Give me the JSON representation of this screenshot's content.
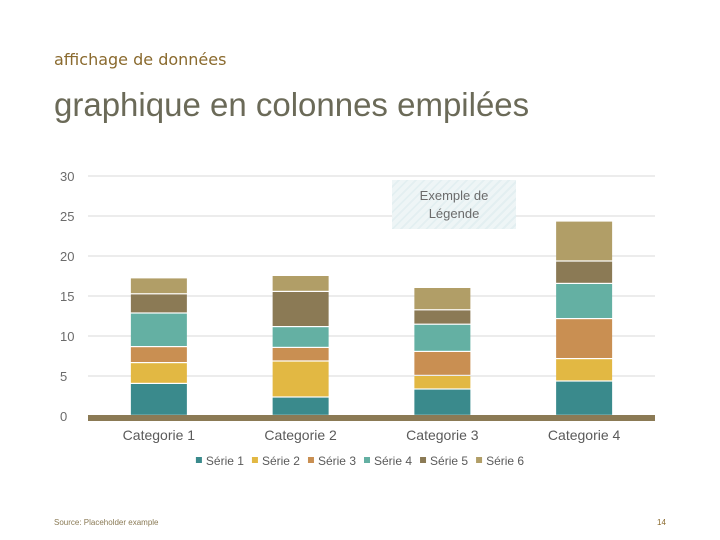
{
  "header": {
    "kicker": "affichage de données",
    "title": "graphique en colonnes empilées"
  },
  "legend_note": {
    "line1": "Exemple de",
    "line2": "Légende"
  },
  "footer": {
    "source": "Source: Placeholder example",
    "page_number": "14"
  },
  "colors": {
    "Série 1": "#3a8a8c",
    "Série 2": "#e2b843",
    "Série 3": "#c98f52",
    "Série 4": "#64b0a3",
    "Série 5": "#8b7a55",
    "Série 6": "#b19e67",
    "baseline": "#8b7a55",
    "grid": "#d9d9d9"
  },
  "chart_data": {
    "type": "bar",
    "stacked": true,
    "categories": [
      "Categorie 1",
      "Categorie 2",
      "Categorie 3",
      "Categorie 4"
    ],
    "series": [
      {
        "name": "Série 1",
        "values": [
          4.0,
          2.3,
          3.3,
          4.3
        ]
      },
      {
        "name": "Série 2",
        "values": [
          2.6,
          4.5,
          1.7,
          2.8
        ]
      },
      {
        "name": "Série 3",
        "values": [
          2.0,
          1.7,
          3.0,
          5.0
        ]
      },
      {
        "name": "Série 4",
        "values": [
          4.2,
          2.6,
          3.4,
          4.4
        ]
      },
      {
        "name": "Série 5",
        "values": [
          2.4,
          4.4,
          1.8,
          2.8
        ]
      },
      {
        "name": "Série 6",
        "values": [
          2.0,
          2.0,
          2.8,
          5.0
        ]
      }
    ],
    "ylim": [
      0,
      30
    ],
    "yticks": [
      0,
      5,
      10,
      15,
      20,
      25,
      30
    ],
    "grid": true,
    "legend_position": "bottom"
  }
}
